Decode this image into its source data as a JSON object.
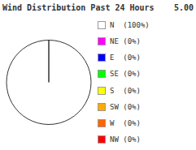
{
  "chart_data": {
    "type": "pie",
    "title": "Wind Distribution Past 24 Hours",
    "annotations": [
      "5.00"
    ],
    "categories": [
      "N  (100%)",
      "NE (0%)",
      "E  (0%)",
      "SE (0%)",
      "S  (0%)",
      "SW (0%)",
      "W  (0%)",
      "NW (0%)"
    ],
    "values": [
      100,
      0,
      0,
      0,
      0,
      0,
      0,
      0
    ],
    "colors": [
      "#ffffff",
      "#ff00ff",
      "#0000ff",
      "#00ff00",
      "#ffff00",
      "#ffaa00",
      "#ff6600",
      "#ff0000"
    ]
  }
}
